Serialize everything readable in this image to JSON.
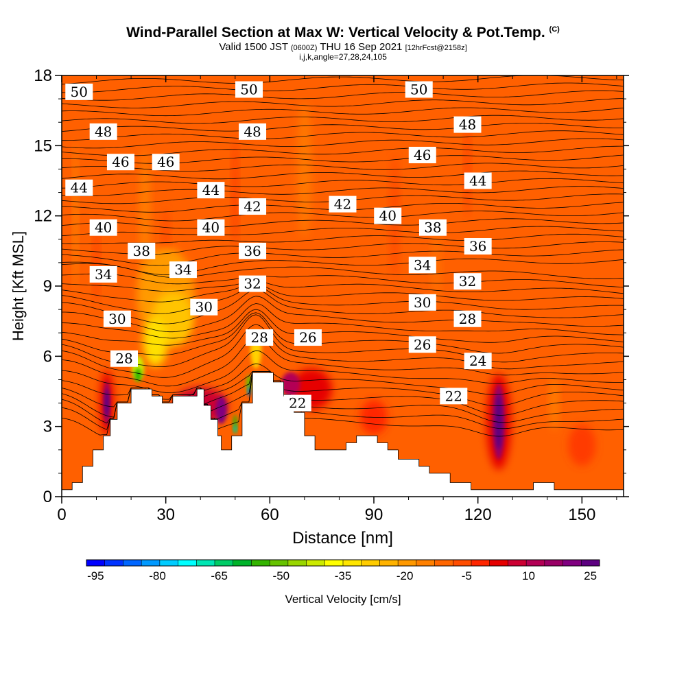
{
  "header": {
    "title": "Wind-Parallel Section at Max W: Vertical Velocity & Pot.Temp.",
    "copyright": "(C)",
    "valid_prefix": "Valid 1500 JST",
    "valid_utc": "(0600Z)",
    "valid_date": "THU 16 Sep 2021",
    "forecast": "[12hrFcst@2158z]",
    "indices": "i,j,k,angle=27,28,24,105"
  },
  "chart_data": {
    "type": "heatmap",
    "xlabel": "Distance [nm]",
    "ylabel": "Height [Kft MSL]",
    "xlim": [
      0,
      162
    ],
    "ylim": [
      0,
      18
    ],
    "xticks": [
      "0",
      "30",
      "60",
      "90",
      "120",
      "150"
    ],
    "yticks": [
      "0",
      "3",
      "6",
      "9",
      "12",
      "15",
      "18"
    ],
    "colorbar": {
      "title": "Vertical Velocity [cm/s]",
      "tick_labels": [
        "-95",
        "-80",
        "-65",
        "-50",
        "-35",
        "-20",
        "-5",
        "10",
        "25"
      ],
      "tick_values": [
        -95,
        -80,
        -65,
        -50,
        -35,
        -20,
        -5,
        10,
        25
      ],
      "colors": [
        "#0000ff",
        "#0033ff",
        "#0066ff",
        "#0099ff",
        "#00ccff",
        "#00ffff",
        "#00e6b3",
        "#00cc66",
        "#00b32a",
        "#33b300",
        "#66c200",
        "#99d600",
        "#ccea00",
        "#ffff00",
        "#ffe600",
        "#ffcc00",
        "#ffb300",
        "#ff9900",
        "#ff8000",
        "#ff6600",
        "#ff4d00",
        "#ff2600",
        "#e60000",
        "#cc0033",
        "#b30055",
        "#990066",
        "#800080",
        "#5c0080"
      ]
    },
    "theta_contour_labels": [
      "50",
      "48",
      "46",
      "44",
      "42",
      "40",
      "38",
      "36",
      "34",
      "32",
      "30",
      "28",
      "26",
      "24",
      "22"
    ],
    "theta_label_positions": [
      {
        "label": "50",
        "x": 5,
        "y": 17.3
      },
      {
        "label": "50",
        "x": 54,
        "y": 17.4
      },
      {
        "label": "50",
        "x": 103,
        "y": 17.4
      },
      {
        "label": "48",
        "x": 12,
        "y": 15.6
      },
      {
        "label": "48",
        "x": 55,
        "y": 15.6
      },
      {
        "label": "48",
        "x": 117,
        "y": 15.9
      },
      {
        "label": "46",
        "x": 17,
        "y": 14.3
      },
      {
        "label": "46",
        "x": 30,
        "y": 14.3
      },
      {
        "label": "46",
        "x": 104,
        "y": 14.6
      },
      {
        "label": "44",
        "x": 5,
        "y": 13.2
      },
      {
        "label": "44",
        "x": 43,
        "y": 13.1
      },
      {
        "label": "44",
        "x": 120,
        "y": 13.5
      },
      {
        "label": "42",
        "x": 55,
        "y": 12.4
      },
      {
        "label": "42",
        "x": 81,
        "y": 12.5
      },
      {
        "label": "40",
        "x": 12,
        "y": 11.5
      },
      {
        "label": "40",
        "x": 43,
        "y": 11.5
      },
      {
        "label": "40",
        "x": 94,
        "y": 12.0
      },
      {
        "label": "38",
        "x": 23,
        "y": 10.5
      },
      {
        "label": "38",
        "x": 107,
        "y": 11.5
      },
      {
        "label": "36",
        "x": 55,
        "y": 10.5
      },
      {
        "label": "36",
        "x": 120,
        "y": 10.7
      },
      {
        "label": "34",
        "x": 12,
        "y": 9.5
      },
      {
        "label": "34",
        "x": 35,
        "y": 9.7
      },
      {
        "label": "34",
        "x": 104,
        "y": 9.9
      },
      {
        "label": "32",
        "x": 55,
        "y": 9.1
      },
      {
        "label": "32",
        "x": 117,
        "y": 9.2
      },
      {
        "label": "30",
        "x": 16,
        "y": 7.6
      },
      {
        "label": "30",
        "x": 41,
        "y": 8.1
      },
      {
        "label": "30",
        "x": 104,
        "y": 8.3
      },
      {
        "label": "28",
        "x": 18,
        "y": 5.9
      },
      {
        "label": "28",
        "x": 57,
        "y": 6.8
      },
      {
        "label": "28",
        "x": 117,
        "y": 7.6
      },
      {
        "label": "26",
        "x": 71,
        "y": 6.8
      },
      {
        "label": "26",
        "x": 104,
        "y": 6.5
      },
      {
        "label": "24",
        "x": 120,
        "y": 5.8
      },
      {
        "label": "22",
        "x": 68,
        "y": 4.0
      },
      {
        "label": "22",
        "x": 113,
        "y": 4.3
      }
    ],
    "terrain_profile": [
      [
        0,
        0.3
      ],
      [
        3,
        0.3
      ],
      [
        3,
        0.6
      ],
      [
        6,
        0.6
      ],
      [
        6,
        1.3
      ],
      [
        9,
        1.3
      ],
      [
        9,
        2.0
      ],
      [
        12,
        2.0
      ],
      [
        12,
        2.6
      ],
      [
        14,
        2.6
      ],
      [
        14,
        3.3
      ],
      [
        16,
        3.3
      ],
      [
        16,
        4.0
      ],
      [
        20,
        4.0
      ],
      [
        20,
        4.6
      ],
      [
        26,
        4.6
      ],
      [
        26,
        4.3
      ],
      [
        29,
        4.3
      ],
      [
        29,
        4.0
      ],
      [
        32,
        4.0
      ],
      [
        32,
        4.3
      ],
      [
        39,
        4.3
      ],
      [
        39,
        4.6
      ],
      [
        41,
        4.6
      ],
      [
        41,
        3.9
      ],
      [
        43,
        3.9
      ],
      [
        43,
        3.3
      ],
      [
        45,
        3.3
      ],
      [
        45,
        2.6
      ],
      [
        46,
        2.6
      ],
      [
        46,
        2.0
      ],
      [
        49,
        2.0
      ],
      [
        49,
        2.6
      ],
      [
        52,
        2.6
      ],
      [
        52,
        4.0
      ],
      [
        55,
        4.0
      ],
      [
        55,
        5.3
      ],
      [
        61,
        5.3
      ],
      [
        61,
        4.9
      ],
      [
        64,
        4.9
      ],
      [
        64,
        4.3
      ],
      [
        67,
        4.3
      ],
      [
        67,
        3.6
      ],
      [
        70,
        3.6
      ],
      [
        70,
        2.6
      ],
      [
        73,
        2.6
      ],
      [
        73,
        2.0
      ],
      [
        82,
        2.0
      ],
      [
        82,
        2.3
      ],
      [
        85,
        2.3
      ],
      [
        85,
        2.6
      ],
      [
        91,
        2.6
      ],
      [
        91,
        2.3
      ],
      [
        94,
        2.3
      ],
      [
        94,
        2.0
      ],
      [
        97,
        2.0
      ],
      [
        97,
        1.6
      ],
      [
        103,
        1.6
      ],
      [
        103,
        1.3
      ],
      [
        106,
        1.3
      ],
      [
        106,
        1.0
      ],
      [
        112,
        1.0
      ],
      [
        112,
        0.6
      ],
      [
        118,
        0.6
      ],
      [
        118,
        0.3
      ],
      [
        127,
        0.3
      ],
      [
        127,
        0.3
      ],
      [
        136,
        0.3
      ],
      [
        136,
        0.6
      ],
      [
        142,
        0.6
      ],
      [
        142,
        0.3
      ],
      [
        162,
        0.3
      ]
    ],
    "w_features": [
      {
        "kind": "downdraft",
        "x": 13,
        "y": 4.0,
        "w_min": 25
      },
      {
        "kind": "updraft",
        "x": 22,
        "y": 5.6,
        "w_min": -50
      },
      {
        "kind": "updraft",
        "x": 50,
        "y": 3.0,
        "w_min": -50
      },
      {
        "kind": "updraft",
        "x": 54,
        "y": 5.0,
        "w_min": -80
      },
      {
        "kind": "downdraft",
        "x": 46,
        "y": 3.8,
        "w_max": 25
      },
      {
        "kind": "downdraft",
        "x": 126,
        "y": 3.2,
        "w_max": 25
      }
    ]
  }
}
